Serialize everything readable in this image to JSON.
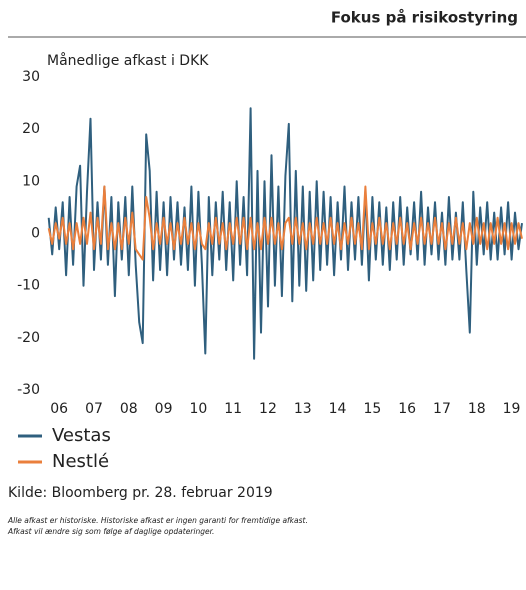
{
  "header": {
    "title": "Fokus på risikostyring"
  },
  "chart_data": {
    "type": "line",
    "subtitle": "Månedlige afkast i DKK",
    "x": [
      5.7,
      5.8,
      5.9,
      6,
      6.1,
      6.2,
      6.3,
      6.4,
      6.5,
      6.6,
      6.7,
      6.8,
      6.9,
      7,
      7.1,
      7.2,
      7.3,
      7.4,
      7.5,
      7.6,
      7.7,
      7.8,
      7.9,
      8,
      8.1,
      8.2,
      8.3,
      8.4,
      8.5,
      8.6,
      8.7,
      8.8,
      8.9,
      9,
      9.1,
      9.2,
      9.3,
      9.4,
      9.5,
      9.6,
      9.7,
      9.8,
      9.9,
      10,
      10.1,
      10.2,
      10.3,
      10.4,
      10.5,
      10.6,
      10.7,
      10.8,
      10.9,
      11,
      11.1,
      11.2,
      11.3,
      11.4,
      11.5,
      11.6,
      11.7,
      11.8,
      11.9,
      12,
      12.1,
      12.2,
      12.3,
      12.4,
      12.5,
      12.6,
      12.7,
      12.8,
      12.9,
      13,
      13.1,
      13.2,
      13.3,
      13.4,
      13.5,
      13.6,
      13.7,
      13.8,
      13.9,
      14,
      14.1,
      14.2,
      14.3,
      14.4,
      14.5,
      14.6,
      14.7,
      14.8,
      14.9,
      15,
      15.1,
      15.2,
      15.3,
      15.4,
      15.5,
      15.6,
      15.7,
      15.8,
      15.9,
      16,
      16.1,
      16.2,
      16.3,
      16.4,
      16.5,
      16.6,
      16.7,
      16.8,
      16.9,
      17,
      17.1,
      17.2,
      17.3,
      17.4,
      17.5,
      17.6,
      17.7,
      17.8,
      17.9,
      18,
      18.1,
      18.2,
      18.3,
      18.4,
      18.5,
      18.6,
      18.7,
      18.8,
      18.9,
      19,
      19.1,
      19.2,
      19.3
    ],
    "xlim": [
      5.65,
      19.3
    ],
    "xticks": [
      {
        "value": 6,
        "label": "06"
      },
      {
        "value": 7,
        "label": "07"
      },
      {
        "value": 8,
        "label": "08"
      },
      {
        "value": 9,
        "label": "09"
      },
      10,
      11,
      12,
      13,
      14,
      15,
      16,
      17,
      18,
      19
    ],
    "ylim": [
      -30,
      30
    ],
    "yticks": [
      30,
      20,
      10,
      0,
      -10,
      -20,
      -30
    ],
    "grid": false,
    "series": [
      {
        "name": "Vestas",
        "color": "#2f5f7e",
        "values": [
          3,
          -4,
          5,
          -3,
          6,
          -8,
          7,
          -6,
          9,
          13,
          -10,
          8,
          22,
          -7,
          6,
          -5,
          9,
          -6,
          7,
          -12,
          6,
          -5,
          7,
          -8,
          9,
          -6,
          -17,
          -21,
          19,
          12,
          -9,
          8,
          -7,
          6,
          -8,
          7,
          -5,
          6,
          -6,
          5,
          -7,
          9,
          -10,
          8,
          -6,
          -23,
          7,
          -8,
          6,
          -5,
          8,
          -7,
          6,
          -9,
          10,
          -6,
          7,
          -8,
          24,
          -24,
          12,
          -19,
          10,
          -14,
          15,
          -10,
          9,
          -12,
          11,
          21,
          -13,
          12,
          -10,
          9,
          -11,
          8,
          -9,
          10,
          -7,
          8,
          -6,
          7,
          -8,
          6,
          -5,
          9,
          -7,
          6,
          -5,
          7,
          -6,
          8,
          -9,
          7,
          -5,
          6,
          -6,
          5,
          -7,
          6,
          -5,
          7,
          -6,
          5,
          -4,
          6,
          -5,
          8,
          -6,
          5,
          -4,
          6,
          -5,
          4,
          -6,
          7,
          -5,
          4,
          -5,
          6,
          -7,
          -19,
          8,
          -6,
          5,
          -4,
          6,
          -5,
          4,
          -5,
          5,
          -4,
          6,
          -5,
          4,
          -3,
          2
        ]
      },
      {
        "name": "Nestlé",
        "color": "#ea7f3c",
        "values": [
          1,
          -2,
          2,
          -1,
          3,
          -2,
          2,
          -3,
          2,
          -2,
          3,
          -2,
          4,
          -3,
          3,
          -2,
          9,
          -3,
          2,
          -3,
          2,
          -3,
          3,
          -2,
          4,
          -3,
          -4,
          -5,
          7,
          3,
          -3,
          2,
          -2,
          3,
          -2,
          2,
          -3,
          2,
          -2,
          3,
          -2,
          2,
          -3,
          2,
          -2,
          -3,
          2,
          -2,
          3,
          -2,
          2,
          -3,
          2,
          -2,
          3,
          -2,
          3,
          -3,
          3,
          -3,
          2,
          -3,
          3,
          -2,
          3,
          -2,
          2,
          -3,
          2,
          3,
          -2,
          3,
          -2,
          2,
          -3,
          2,
          -2,
          3,
          -2,
          2,
          -2,
          3,
          -2,
          2,
          -3,
          2,
          -2,
          3,
          -2,
          2,
          -3,
          9,
          -3,
          2,
          -2,
          3,
          -2,
          2,
          -3,
          2,
          -2,
          3,
          -2,
          2,
          -3,
          2,
          -2,
          3,
          -2,
          2,
          -2,
          3,
          -2,
          2,
          -3,
          2,
          -2,
          3,
          -2,
          2,
          -3,
          2,
          -2,
          3,
          -2,
          2,
          -3,
          2,
          -2,
          3,
          -2,
          2,
          -3,
          2,
          -2,
          2,
          -1
        ]
      }
    ]
  },
  "source": "Kilde: Bloomberg pr. 28. februar 2019",
  "notes": [
    "Alle afkast er historiske. Historiske afkast er ingen garanti for fremtidige afkast.",
    "Afkast vil ændre sig som følge af daglige opdateringer."
  ]
}
